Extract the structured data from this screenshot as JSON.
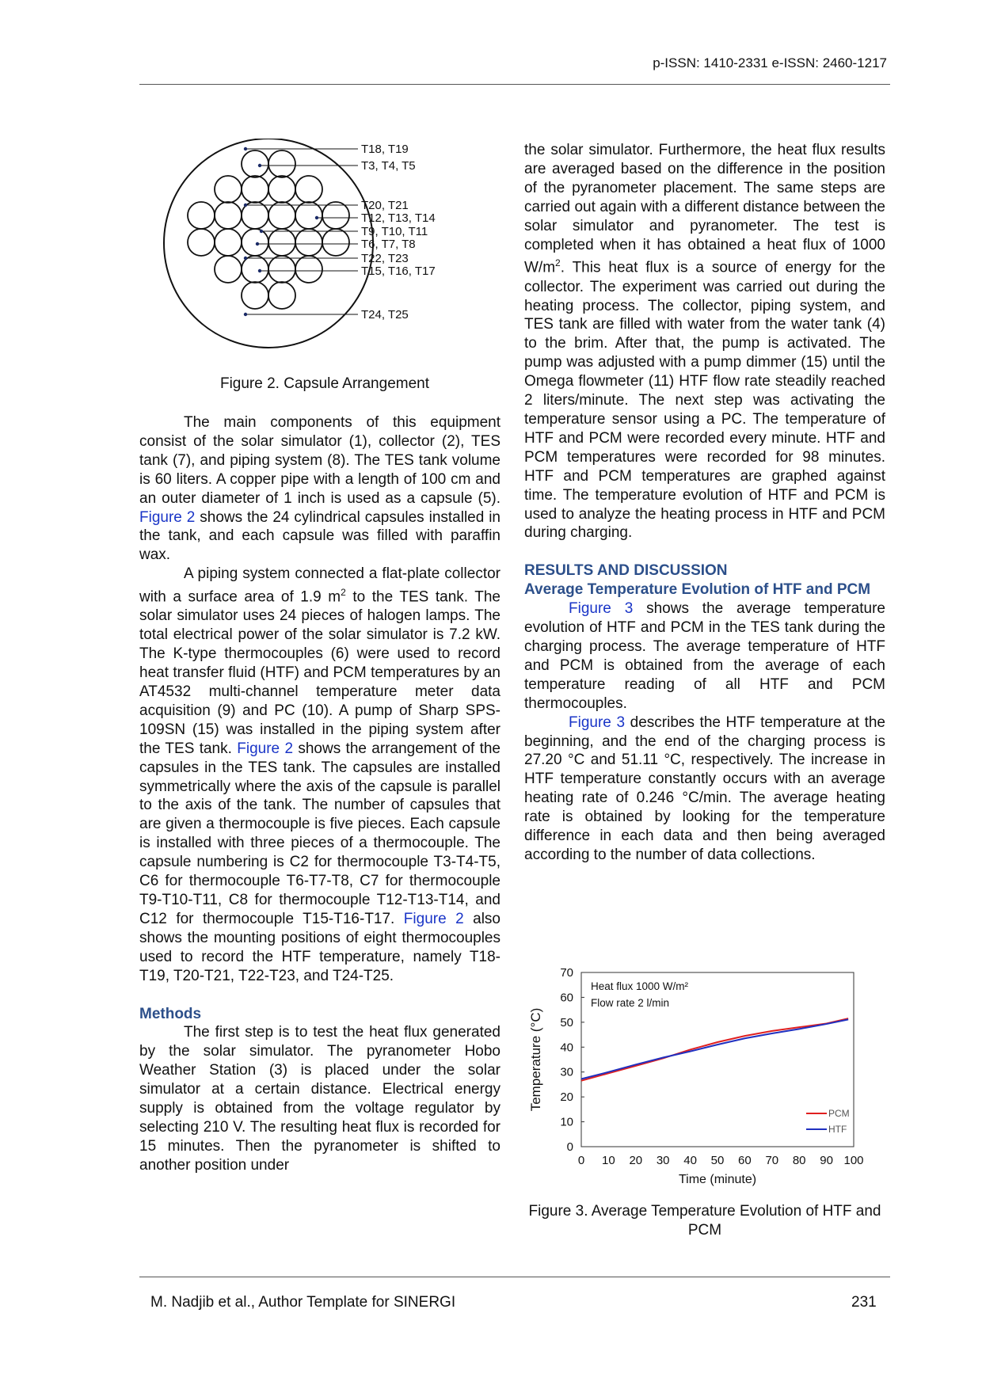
{
  "header": {
    "issn": "p-ISSN: 1410-2331  e-ISSN: 2460-1217"
  },
  "figure2": {
    "labels": [
      "T18, T19",
      "T3, T4, T5",
      "T20, T21",
      "T12, T13, T14",
      "T9, T10, T11",
      "T6, T7, T8",
      "T22, T23",
      "T15, T16, T17",
      "T24, T25"
    ],
    "caption": "Figure 2. Capsule Arrangement"
  },
  "left": {
    "p1": [
      "The main components of this equipment consist of the solar simulator (1), collector (2), TES tank (7), and piping system (8). The TES tank volume is 60 liters. A copper pipe with a length of 100 cm and an outer diameter of 1 inch is used as a capsule (5). ",
      "Figure 2",
      " shows the 24 cylindrical capsules installed in the tank, and each capsule was filled with paraffin wax."
    ],
    "p2": [
      "A piping system connected a flat-plate collector with a surface area of 1.9 m",
      "2",
      " to the TES tank. The solar simulator uses 24 pieces of halogen lamps. The total electrical power of the solar simulator is 7.2 kW. The K-type thermocouples (6) were used to record heat transfer fluid (HTF) and PCM temperatures by an AT4532 multi-channel temperature meter data acquisition (9) and PC (10). A pump of Sharp SPS-109SN (15) was installed in the piping system after the TES tank. ",
      "Figure 2",
      " shows the arrangement of the capsules in the TES tank. The capsules are installed symmetrically where the axis of the capsule is parallel to the axis of the tank. The number of capsules that are given a thermocouple is five pieces. Each capsule is installed with three pieces of a thermocouple. The capsule numbering is C2 for thermocouple T3-T4-T5, C6 for thermocouple T6-T7-T8, C7 for thermocouple T9-T10-T11, C8 for thermocouple T12-T13-T14, and C12 for thermocouple T15-T16-T17. ",
      "Figure 2",
      " also shows the mounting positions of eight thermocouples used to record the HTF temperature, namely T18-T19, T20-T21, T22-T23, and T24-T25."
    ],
    "methods_heading": "Methods",
    "p3": "The first step is to test the heat flux generated by the solar simulator. The pyranometer Hobo Weather Station (3) is placed under the solar simulator at a certain distance. Electrical energy supply is obtained from the voltage regulator by selecting 210 V. The resulting heat flux is recorded for 15 minutes. Then the pyranometer is shifted to another position under"
  },
  "right": {
    "p1": [
      "the solar simulator. Furthermore, the heat flux results are averaged based on the difference in the position of the pyranometer placement. The same steps are carried out again with a different distance between the solar simulator and pyranometer. The test is completed when it has obtained a heat flux of 1000 W/m",
      "2",
      ". This heat flux is a source of energy for the collector. The experiment was carried out during the heating process. The collector, piping system, and TES tank are filled with water from the water tank (4) to the brim. After that, the pump is activated. The pump was adjusted with a pump dimmer (15) until the Omega flowmeter (11) HTF flow rate steadily reached 2 liters/minute. The next step was activating the temperature sensor using a PC. The temperature of HTF and PCM were recorded every minute. HTF and PCM temperatures were recorded for 98 minutes. HTF and PCM temperatures are graphed against time. The temperature evolution of HTF and PCM is used to analyze the heating process in HTF and PCM during charging."
    ],
    "results_heading": "RESULTS AND DISCUSSION",
    "sub_heading": "Average Temperature Evolution of HTF and PCM",
    "p2": [
      "Figure 3",
      " shows the average temperature evolution of HTF and PCM in the TES tank during the charging process. The average temperature of HTF and PCM is obtained from the average of each temperature reading of all HTF and PCM thermocouples."
    ],
    "p3": [
      "Figure 3",
      " describes the HTF temperature at the beginning, and the end of the charging process is 27.20 °C and 51.11 °C, respectively. The increase in HTF temperature constantly occurs with an average heating rate of 0.246 °C/min. The average heating rate is obtained by looking for the temperature difference in each data and then being averaged according to the number of data collections."
    ]
  },
  "figure3": {
    "caption": "Figure 3. Average Temperature Evolution of HTF and PCM"
  },
  "chart_data": {
    "type": "line",
    "xlabel": "Time (minute)",
    "ylabel": "Temperature (°C)",
    "xlim": [
      0,
      100
    ],
    "ylim": [
      0,
      70
    ],
    "xticks": [
      0,
      10,
      20,
      30,
      40,
      50,
      60,
      70,
      80,
      90,
      100
    ],
    "yticks": [
      0,
      10,
      20,
      30,
      40,
      50,
      60,
      70
    ],
    "annotations": [
      "Heat flux 1000 W/m²",
      "Flow rate 2 l/min"
    ],
    "series": [
      {
        "name": "PCM",
        "color": "#e02020",
        "x": [
          0,
          10,
          20,
          30,
          40,
          50,
          60,
          70,
          80,
          90,
          98
        ],
        "y": [
          26.5,
          29.5,
          32.5,
          35.5,
          39.0,
          42.0,
          44.5,
          46.5,
          48.0,
          49.5,
          51.5
        ]
      },
      {
        "name": "HTF",
        "color": "#2030c0",
        "x": [
          0,
          10,
          20,
          30,
          40,
          50,
          60,
          70,
          80,
          90,
          98
        ],
        "y": [
          27.2,
          30.0,
          33.0,
          35.8,
          38.3,
          41.0,
          43.5,
          45.5,
          47.3,
          49.3,
          51.11
        ]
      }
    ]
  },
  "footer": {
    "left": "M. Nadjib et al., Author Template for SINERGI",
    "page": "231"
  }
}
